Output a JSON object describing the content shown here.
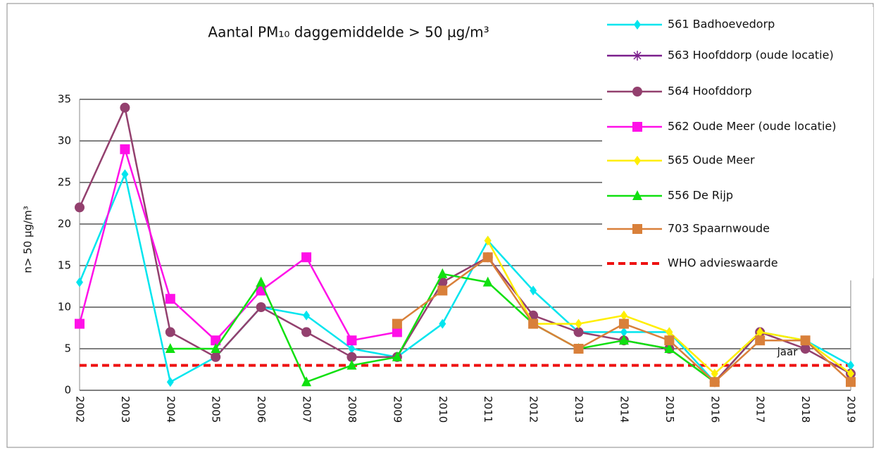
{
  "chart_data": {
    "type": "line",
    "title": "Aantal PM₁₀ daggemiddelde > 50 µg/m³",
    "y_label": "n> 50 µg/m³",
    "x_label": "jaar",
    "categories": [
      "2002",
      "2003",
      "2004",
      "2005",
      "2006",
      "2007",
      "2008",
      "2009",
      "2010",
      "2011",
      "2012",
      "2013",
      "2014",
      "2015",
      "2016",
      "2017",
      "2018",
      "2019"
    ],
    "ylim": [
      0,
      35
    ],
    "yticks": [
      0,
      5,
      10,
      15,
      20,
      25,
      30,
      35
    ],
    "grid": true,
    "legend": "right",
    "series": [
      {
        "name": "561 Badhoevedorp",
        "color": "#00e5ee",
        "marker": "diamond",
        "values": [
          13,
          26,
          1,
          4,
          10,
          9,
          5,
          4,
          8,
          18,
          12,
          7,
          7,
          7,
          1,
          7,
          6,
          3
        ]
      },
      {
        "name": "563 Hoofddorp (oude locatie)",
        "color": "#7b1f8c",
        "marker": "star",
        "values": [
          null,
          null,
          null,
          null,
          null,
          null,
          null,
          null,
          null,
          null,
          null,
          null,
          null,
          null,
          null,
          null,
          null,
          null
        ]
      },
      {
        "name": "564 Hoofddorp",
        "color": "#93406e",
        "marker": "circle",
        "values": [
          22,
          34,
          7,
          4,
          10,
          7,
          4,
          4,
          13,
          16,
          9,
          7,
          6,
          5,
          1,
          7,
          5,
          2
        ]
      },
      {
        "name": "562 Oude Meer (oude locatie)",
        "color": "#ff10e8",
        "marker": "square",
        "values": [
          8,
          29,
          11,
          6,
          12,
          16,
          6,
          7,
          null,
          null,
          null,
          null,
          null,
          null,
          null,
          null,
          null,
          null
        ]
      },
      {
        "name": "565 Oude Meer",
        "color": "#ffee00",
        "marker": "diamond",
        "values": [
          null,
          null,
          null,
          null,
          null,
          null,
          null,
          null,
          null,
          18,
          8,
          8,
          9,
          7,
          2,
          7,
          6,
          2
        ]
      },
      {
        "name": "556 De Rijp",
        "color": "#10e010",
        "marker": "triangle",
        "values": [
          null,
          null,
          5,
          5,
          13,
          1,
          3,
          4,
          14,
          13,
          8,
          5,
          6,
          5,
          1,
          null,
          null,
          null
        ]
      },
      {
        "name": "703 Spaarnwoude",
        "color": "#d9803a",
        "marker": "square",
        "values": [
          null,
          null,
          null,
          null,
          null,
          null,
          null,
          8,
          12,
          16,
          8,
          5,
          8,
          6,
          1,
          6,
          6,
          1
        ]
      }
    ],
    "reference_line": {
      "name": "WHO advieswaarde",
      "value": 3,
      "color": "#ee1111"
    }
  }
}
